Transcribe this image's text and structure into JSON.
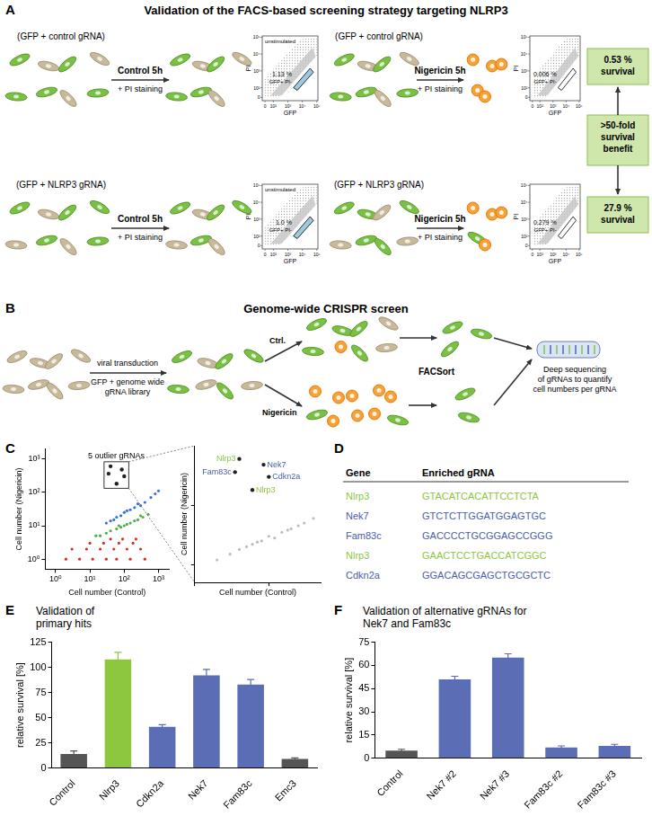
{
  "panel_a": {
    "letter": "A",
    "title": "Validation of the FACS-based screening strategy targeting NLRP3",
    "facs_axes": {
      "x_label": "GFP",
      "y_label": "PI",
      "ticks": [
        {
          "value": 0,
          "label": "0"
        },
        {
          "value": 100,
          "label": "10²"
        },
        {
          "value": 1000,
          "label": "10³"
        },
        {
          "value": 10000,
          "label": "10⁴"
        },
        {
          "value": 100000,
          "label": "10⁵"
        }
      ]
    },
    "rows": [
      {
        "survival": [
          "0.53 %",
          "survival"
        ],
        "conditions": [
          {
            "construct": "(GFP + control gRNA)",
            "treatment": "Control 5h",
            "staining": "+ PI staining",
            "plot_note": "unstimulated",
            "gate": "1.13 %",
            "gate_name": "GFP+ PI-"
          },
          {
            "construct": "(GFP + control gRNA)",
            "treatment": "Nigericin 5h",
            "staining": "+ PI staining",
            "gate": "0.006 %",
            "gate_name": "GFP+ PI-"
          }
        ]
      },
      {
        "survival": [
          "27.9 %",
          "survival"
        ],
        "conditions": [
          {
            "construct": "(GFP + NLRP3 gRNA)",
            "treatment": "Control 5h",
            "staining": "+ PI staining",
            "plot_note": "unstimulated",
            "gate": "1.0 %",
            "gate_name": "GFP+ PI-"
          },
          {
            "construct": "(GFP + NLRP3 gRNA)",
            "treatment": "Nigericin 5h",
            "staining": "+ PI staining",
            "gate": "0.279 %",
            "gate_name": "GFP+ PI-"
          }
        ]
      }
    ],
    "comparison": [
      ">50-fold",
      "survival",
      "benefit"
    ]
  },
  "panel_b": {
    "letter": "B",
    "title": "Genome-wide CRISPR screen",
    "transduction": "viral transduction",
    "library": [
      "GFP + genome wide",
      "gRNA library"
    ],
    "control": "Ctrl.",
    "treatment": "Nigericin",
    "sorting": "FACSort",
    "sequencing": [
      "Deep sequencing",
      "of gRNAs to quantify",
      "cell numbers per gRNA"
    ]
  },
  "panel_d": {
    "letter": "D",
    "table": {
      "header": [
        "Gene",
        "Enriched gRNA"
      ],
      "rows": [
        [
          "Nlrp3",
          "GTACATCACATTCCTCTA"
        ],
        [
          "Nek7",
          "GTCTCTTGGATGGAGTGC"
        ],
        [
          "Fam83c",
          "GACCCCTGCGGAGCCGGG"
        ],
        [
          "Nlrp3",
          "GAACTCCTGACCATCGGC"
        ],
        [
          "Cdkn2a",
          "GGACAGCGAGCTGCGCTC"
        ]
      ],
      "colors": [
        "#8dc63f",
        "#4a5ea8",
        "#4a5ea8",
        "#8dc63f",
        "#4a5ea8"
      ]
    }
  },
  "chart_data": [
    {
      "panel": "C",
      "type": "scatter",
      "x_label": "Cell number (Control)",
      "y_label": "Cell number (Nigericin)",
      "log": true,
      "grid": false,
      "xlim": [
        0.5,
        2000
      ],
      "ylim": [
        0.5,
        2000
      ],
      "xticks": [
        {
          "value": 1,
          "label": "10⁰"
        },
        {
          "value": 10,
          "label": "10¹"
        },
        {
          "value": 100,
          "label": "10²"
        },
        {
          "value": 1000,
          "label": "10³"
        }
      ],
      "yticks": [
        {
          "value": 1,
          "label": "10⁰"
        },
        {
          "value": 10,
          "label": "10¹"
        },
        {
          "value": 100,
          "label": "10²"
        },
        {
          "value": 1000,
          "label": "10³"
        }
      ],
      "annotation": "5 outlier gRNAs",
      "series": [
        {
          "color": "#d7301f",
          "x": [
            2,
            5,
            12,
            30,
            60,
            150,
            400,
            3,
            8,
            20,
            50,
            120,
            300,
            10,
            25,
            70,
            180,
            40,
            90,
            220
          ],
          "values": [
            1,
            1,
            1,
            1,
            1,
            1,
            1,
            2,
            2,
            2,
            2,
            2,
            2,
            3,
            3,
            3,
            3,
            4,
            4,
            4
          ]
        },
        {
          "color": "#4daf4a",
          "x": [
            15,
            30,
            60,
            100,
            150,
            250,
            40,
            80,
            200,
            350,
            120,
            500,
            20,
            70,
            300
          ],
          "values": [
            5,
            6,
            8,
            10,
            12,
            15,
            7,
            9,
            14,
            18,
            11,
            22,
            5,
            10,
            20
          ]
        },
        {
          "color": "#3a6fd8",
          "x": [
            30,
            60,
            100,
            200,
            400,
            150,
            80,
            300,
            600,
            50,
            250,
            800,
            1000,
            120,
            40
          ],
          "values": [
            12,
            18,
            25,
            35,
            50,
            30,
            20,
            40,
            70,
            15,
            45,
            90,
            110,
            28,
            14
          ]
        },
        {
          "color": "#222222",
          "x": [
            40,
            85,
            35,
            100,
            60
          ],
          "values": [
            600,
            480,
            360,
            300,
            180
          ]
        }
      ]
    },
    {
      "type": "scatter",
      "x_label": "Cell number (Control)",
      "y_label": "Cell number (Nigericin)",
      "log": true,
      "grid": false,
      "tick_labels": false,
      "xlim": [
        10,
        500
      ],
      "ylim": [
        5,
        1000
      ],
      "xticks": [
        10,
        100
      ],
      "yticks": [
        10,
        100
      ],
      "series": [
        {
          "color": "#bdbdbd",
          "x": [
            20,
            40,
            60,
            100,
            150,
            200,
            30,
            80,
            120,
            250,
            300,
            50,
            70,
            180,
            400
          ],
          "values": [
            12,
            18,
            22,
            30,
            35,
            40,
            15,
            25,
            28,
            45,
            50,
            20,
            24,
            38,
            60
          ]
        },
        {
          "color": "#222222",
          "x": [
            40,
            85,
            35,
            100,
            60
          ],
          "values": [
            600,
            480,
            360,
            300,
            180
          ],
          "point_labels": [
            "Nlrp3",
            "Nek7",
            "Fam83c",
            "Cdkn2a",
            "Nlrp3"
          ],
          "colors": [
            "#8dc63f",
            "#4a5ea8",
            "#4a5ea8",
            "#4a5ea8",
            "#8dc63f"
          ]
        }
      ]
    },
    {
      "panel": "E",
      "type": "bar",
      "title": "Validation of primary hits",
      "y_label": "relative survival [%]",
      "grid": false,
      "categories": [
        "Control",
        "Nlrp3",
        "Cdkn2a",
        "Nek7",
        "Fam83c",
        "Emc3"
      ],
      "values": [
        14,
        108,
        41,
        92,
        83,
        9
      ],
      "errors": [
        3,
        7,
        2,
        6,
        5,
        1
      ],
      "colors": [
        "#555555",
        "#8dc63f",
        "#5b6eb5",
        "#5b6eb5",
        "#5b6eb5",
        "#555555"
      ],
      "ylim": [
        0,
        125
      ],
      "yticks": [
        0,
        25,
        50,
        75,
        100,
        125
      ]
    },
    {
      "panel": "F",
      "type": "bar",
      "title": "Validation of alternative gRNAs for Nek7 and Fam83c",
      "y_label": "relative survival [%]",
      "grid": false,
      "categories": [
        "Control",
        "Nek7 #2",
        "Nek7 #3",
        "Fam83c #2",
        "Fam83c #3"
      ],
      "values": [
        5,
        51,
        65,
        7,
        8
      ],
      "errors": [
        0.8,
        2,
        2.5,
        1,
        1
      ],
      "colors": [
        "#555555",
        "#5b6eb5",
        "#5b6eb5",
        "#5b6eb5",
        "#5b6eb5"
      ],
      "ylim": [
        0,
        75
      ],
      "yticks": [
        0,
        15,
        30,
        45,
        60,
        75
      ]
    }
  ]
}
